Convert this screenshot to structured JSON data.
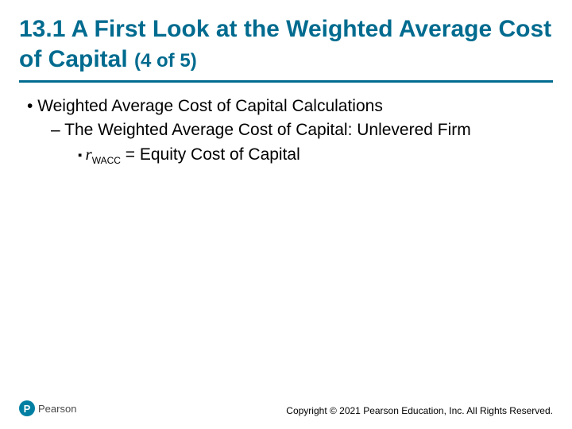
{
  "colors": {
    "title": "#006b8f",
    "rule": "#006b8f",
    "logo_bg": "#007fa3",
    "body_text": "#000000"
  },
  "title": {
    "main": "13.1 A First Look at the Weighted Average Cost of Capital ",
    "sub": "(4 of 5)"
  },
  "bullets": {
    "l1": "Weighted Average Cost of Capital Calculations",
    "l2": "The Weighted Average Cost of Capital: Unlevered Firm",
    "l3_var": "r",
    "l3_sub": "WACC",
    "l3_rest": " = Equity Cost of Capital"
  },
  "footer": {
    "logo_letter": "P",
    "logo_text": "Pearson",
    "copyright": "Copyright © 2021 Pearson Education, Inc. All Rights Reserved."
  }
}
